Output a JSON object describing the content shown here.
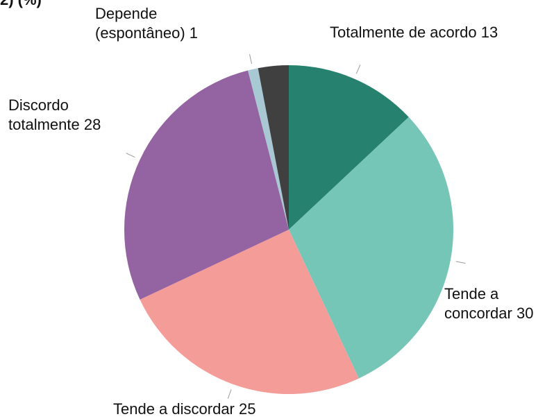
{
  "chart_data": {
    "type": "pie",
    "title": "2) (%)",
    "categories": [
      "Totalmente de acordo",
      "Tende a concordar",
      "Tende a discordar",
      "Discordo totalmente",
      "Depende (espontâneo)",
      null
    ],
    "values": [
      13,
      30,
      25,
      28,
      1,
      3
    ],
    "colors": [
      "#26826f",
      "#76c6b8",
      "#f49c98",
      "#9463a1",
      "#a8c8d4",
      "#404040"
    ]
  }
}
